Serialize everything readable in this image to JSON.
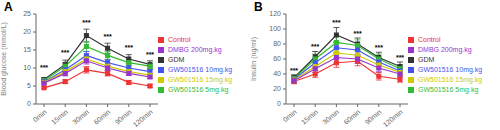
{
  "chart_data": [
    {
      "type": "line",
      "title": "A",
      "y_label": "Blood glucose (mmol/L)",
      "categories": [
        "0min",
        "15min",
        "30min",
        "60min",
        "90min",
        "120min"
      ],
      "series": [
        {
          "name": "Control",
          "color": "#EE3333",
          "marker": "square",
          "values": [
            4.5,
            6.2,
            9.5,
            8.5,
            6.0,
            5.0
          ],
          "errors": [
            0.3,
            0.5,
            0.9,
            0.7,
            0.5,
            0.4
          ]
        },
        {
          "name": "GDM",
          "color": "#333333",
          "marker": "square",
          "values": [
            6.8,
            11.0,
            19.0,
            15.5,
            12.5,
            11.0
          ],
          "errors": [
            0.5,
            1.2,
            1.8,
            1.4,
            1.2,
            1.0
          ]
        },
        {
          "name": "GW501516 5mg.kg",
          "color": "#33BB33",
          "marker": "square",
          "values": [
            6.5,
            10.5,
            16.0,
            13.5,
            11.5,
            10.5
          ],
          "errors": [
            0.5,
            0.9,
            1.4,
            1.1,
            0.9,
            0.7
          ]
        },
        {
          "name": "GW501516 10mg.kg",
          "color": "#4455EE",
          "marker": "square",
          "values": [
            6.2,
            9.5,
            13.5,
            11.5,
            10.0,
            9.0
          ],
          "errors": [
            0.4,
            0.8,
            1.1,
            0.9,
            0.8,
            0.6
          ]
        },
        {
          "name": "GW501516 15mg.kg",
          "color": "#CCCC00",
          "marker": "square",
          "values": [
            6.0,
            9.0,
            12.5,
            10.5,
            9.0,
            8.0
          ],
          "errors": [
            0.4,
            0.7,
            1.0,
            0.8,
            0.7,
            0.5
          ]
        },
        {
          "name": "DMBG 200mg.kg",
          "color": "#9933CC",
          "marker": "square",
          "values": [
            5.8,
            8.5,
            12.0,
            10.0,
            8.5,
            7.5
          ],
          "errors": [
            0.3,
            0.7,
            0.9,
            0.7,
            0.6,
            0.4
          ]
        }
      ],
      "annotations": [
        {
          "x": "0min",
          "y": 9.5,
          "text": "***"
        },
        {
          "x": "15min",
          "y": 13.5,
          "text": "***"
        },
        {
          "x": "30min",
          "y": 22.0,
          "text": "***"
        },
        {
          "x": "60min",
          "y": 18.0,
          "text": "***"
        },
        {
          "x": "90min",
          "y": 15.0,
          "text": "***"
        },
        {
          "x": "120min",
          "y": 13.0,
          "text": "***"
        }
      ],
      "ylim": [
        0,
        25
      ],
      "yticks": [
        0,
        5,
        10,
        15,
        20,
        25
      ],
      "legend": "right"
    },
    {
      "type": "line",
      "title": "B",
      "y_label": "Insulin (ng/ml)",
      "categories": [
        "0min",
        "15min",
        "30min",
        "60min",
        "90min",
        "120min"
      ],
      "series": [
        {
          "name": "Control",
          "color": "#EE3333",
          "marker": "square",
          "values": [
            30.0,
            40.0,
            55.0,
            57.0,
            37.0,
            33.0
          ],
          "errors": [
            3.0,
            4.5,
            6.0,
            6.0,
            5.0,
            4.0
          ]
        },
        {
          "name": "GDM",
          "color": "#333333",
          "marker": "square",
          "values": [
            35.0,
            63.0,
            92.0,
            80.0,
            62.0,
            50.0
          ],
          "errors": [
            4.0,
            7.0,
            10.0,
            8.0,
            7.0,
            6.0
          ]
        },
        {
          "name": "GW501516 5mg.kg",
          "color": "#33BB33",
          "marker": "square",
          "values": [
            34.0,
            60.0,
            82.0,
            78.0,
            60.0,
            47.0
          ],
          "errors": [
            3.5,
            6.5,
            8.5,
            7.5,
            6.5,
            5.5
          ]
        },
        {
          "name": "GW501516 10mg.kg",
          "color": "#4455EE",
          "marker": "square",
          "values": [
            33.0,
            55.0,
            75.0,
            72.0,
            56.0,
            44.0
          ],
          "errors": [
            3.0,
            6.0,
            8.0,
            7.0,
            6.0,
            5.0
          ]
        },
        {
          "name": "GW501516 15mg.kg",
          "color": "#CCCC00",
          "marker": "square",
          "values": [
            32.0,
            50.0,
            68.0,
            65.0,
            52.0,
            42.0
          ],
          "errors": [
            2.8,
            5.5,
            7.5,
            6.5,
            5.5,
            4.5
          ]
        },
        {
          "name": "DMBG 200mg.kg",
          "color": "#9933CC",
          "marker": "square",
          "values": [
            31.0,
            47.0,
            62.0,
            60.0,
            48.0,
            40.0
          ],
          "errors": [
            2.5,
            5.0,
            7.0,
            6.0,
            5.0,
            4.0
          ]
        }
      ],
      "annotations": [
        {
          "x": "0min",
          "y": 42.0,
          "text": "***"
        },
        {
          "x": "15min",
          "y": 74.0,
          "text": "***"
        },
        {
          "x": "30min",
          "y": 105.0,
          "text": "***"
        },
        {
          "x": "60min",
          "y": 91.0,
          "text": "***"
        },
        {
          "x": "90min",
          "y": 72.0,
          "text": "***"
        },
        {
          "x": "120min",
          "y": 59.0,
          "text": "***"
        }
      ],
      "ylim": [
        0,
        120
      ],
      "yticks": [
        0,
        20,
        40,
        60,
        80,
        100,
        120
      ],
      "legend": "right"
    }
  ]
}
